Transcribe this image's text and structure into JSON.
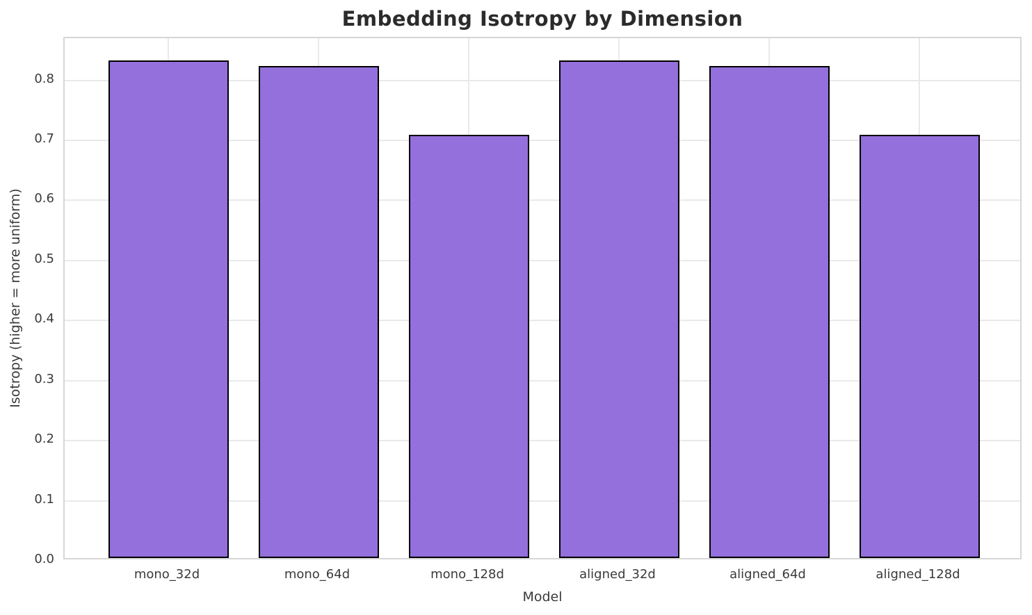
{
  "chart_data": {
    "type": "bar",
    "title": "Embedding Isotropy by Dimension",
    "xlabel": "Model",
    "ylabel": "Isotropy (higher = more uniform)",
    "categories": [
      "mono_32d",
      "mono_64d",
      "mono_128d",
      "aligned_32d",
      "aligned_64d",
      "aligned_128d"
    ],
    "values": [
      0.828,
      0.819,
      0.704,
      0.828,
      0.819,
      0.704
    ],
    "ylim": [
      0,
      0.87
    ],
    "yticks": [
      0.0,
      0.1,
      0.2,
      0.3,
      0.4,
      0.5,
      0.6,
      0.7,
      0.8
    ],
    "ytick_labels": [
      "0.0",
      "0.1",
      "0.2",
      "0.3",
      "0.4",
      "0.5",
      "0.6",
      "0.7",
      "0.8"
    ],
    "bar_color": "#9370DB",
    "bar_edge_color": "#000000",
    "grid": true,
    "grid_color": "#e9e9e9",
    "legend": "none",
    "background": "#ffffff"
  }
}
